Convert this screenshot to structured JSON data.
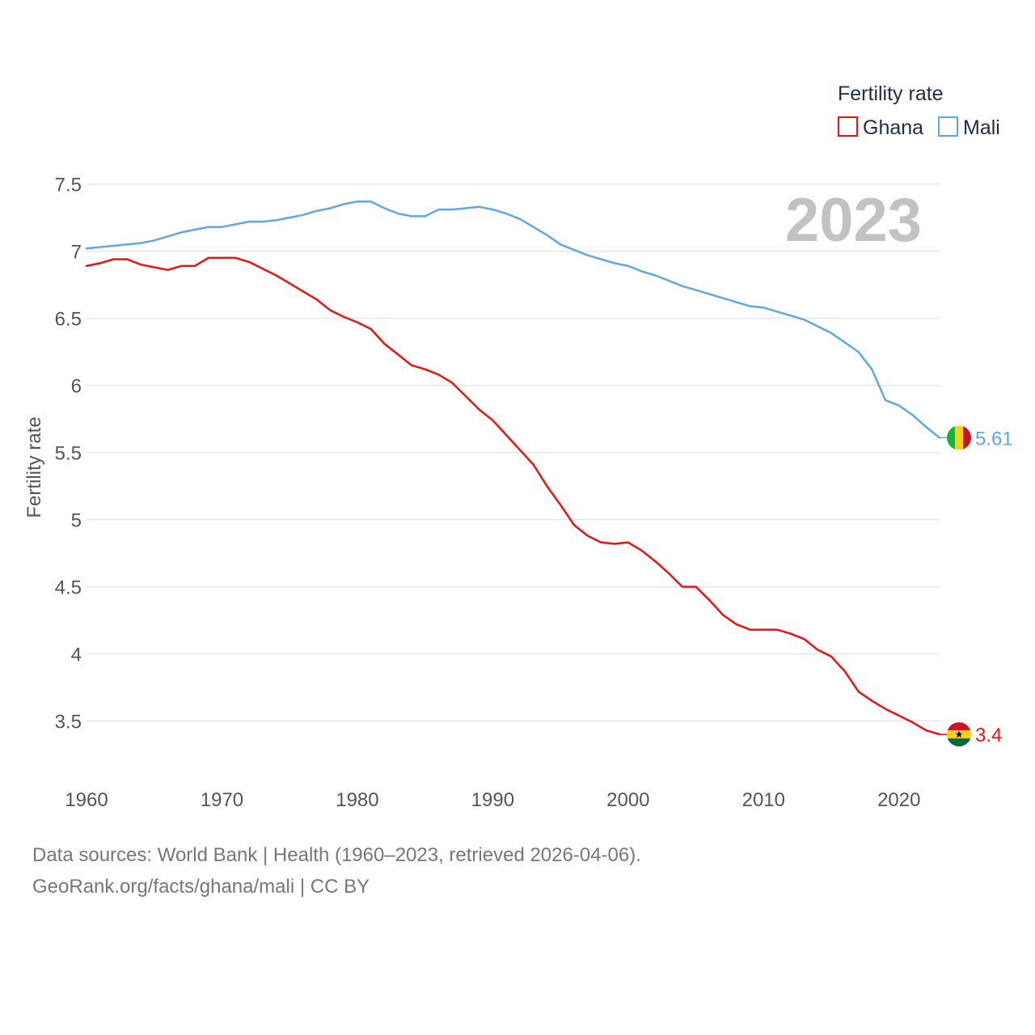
{
  "chart_data": {
    "type": "line",
    "title": "",
    "year_label": "2023",
    "ylabel": "Fertility rate",
    "xlabel": "",
    "xlim": [
      1960,
      2023
    ],
    "ylim": [
      3.1,
      7.6
    ],
    "x_ticks": [
      1960,
      1970,
      1980,
      1990,
      2000,
      2010,
      2020
    ],
    "y_ticks": [
      3.5,
      4,
      4.5,
      5,
      5.5,
      6,
      6.5,
      7,
      7.5
    ],
    "grid": true,
    "legend": {
      "title": "Fertility rate",
      "position": "top-right",
      "entries": [
        "Ghana",
        "Mali"
      ]
    },
    "x": [
      1960,
      1961,
      1962,
      1963,
      1964,
      1965,
      1966,
      1967,
      1968,
      1969,
      1970,
      1971,
      1972,
      1973,
      1974,
      1975,
      1976,
      1977,
      1978,
      1979,
      1980,
      1981,
      1982,
      1983,
      1984,
      1985,
      1986,
      1987,
      1988,
      1989,
      1990,
      1991,
      1992,
      1993,
      1994,
      1995,
      1996,
      1997,
      1998,
      1999,
      2000,
      2001,
      2002,
      2003,
      2004,
      2005,
      2006,
      2007,
      2008,
      2009,
      2010,
      2011,
      2012,
      2013,
      2014,
      2015,
      2016,
      2017,
      2018,
      2019,
      2020,
      2021,
      2022,
      2023
    ],
    "series": [
      {
        "name": "Ghana",
        "color": "#ee1111",
        "end_label": "3.4",
        "flag": "ghana-flag-icon",
        "values": [
          6.89,
          6.91,
          6.94,
          6.94,
          6.9,
          6.88,
          6.86,
          6.89,
          6.89,
          6.95,
          6.95,
          6.95,
          6.92,
          6.87,
          6.82,
          6.76,
          6.7,
          6.64,
          6.56,
          6.51,
          6.47,
          6.42,
          6.31,
          6.23,
          6.15,
          6.12,
          6.08,
          6.02,
          5.92,
          5.82,
          5.74,
          5.63,
          5.52,
          5.41,
          5.25,
          5.11,
          4.96,
          4.88,
          4.83,
          4.82,
          4.83,
          4.77,
          4.69,
          4.6,
          4.5,
          4.5,
          4.4,
          4.29,
          4.22,
          4.18,
          4.18,
          4.18,
          4.15,
          4.11,
          4.03,
          3.98,
          3.87,
          3.72,
          3.65,
          3.59,
          3.54,
          3.49,
          3.43,
          3.4
        ]
      },
      {
        "name": "Mali",
        "color": "#5fa8e8",
        "end_label": "5.61",
        "flag": "mali-flag-icon",
        "values": [
          7.02,
          7.03,
          7.04,
          7.05,
          7.06,
          7.08,
          7.11,
          7.14,
          7.16,
          7.18,
          7.18,
          7.2,
          7.22,
          7.22,
          7.23,
          7.25,
          7.27,
          7.3,
          7.32,
          7.35,
          7.37,
          7.37,
          7.32,
          7.28,
          7.26,
          7.26,
          7.31,
          7.31,
          7.32,
          7.33,
          7.31,
          7.28,
          7.24,
          7.18,
          7.12,
          7.05,
          7.01,
          6.97,
          6.94,
          6.91,
          6.89,
          6.85,
          6.82,
          6.78,
          6.74,
          6.71,
          6.68,
          6.65,
          6.62,
          6.59,
          6.58,
          6.55,
          6.52,
          6.49,
          6.44,
          6.39,
          6.32,
          6.25,
          6.12,
          5.89,
          5.85,
          5.78,
          5.69,
          5.61
        ]
      }
    ]
  },
  "footer": {
    "sources": "Data sources: World Bank | Health (1960–2023, retrieved 2026-04-06).",
    "attribution": "GeoRank.org/facts/ghana/mali | CC BY"
  }
}
